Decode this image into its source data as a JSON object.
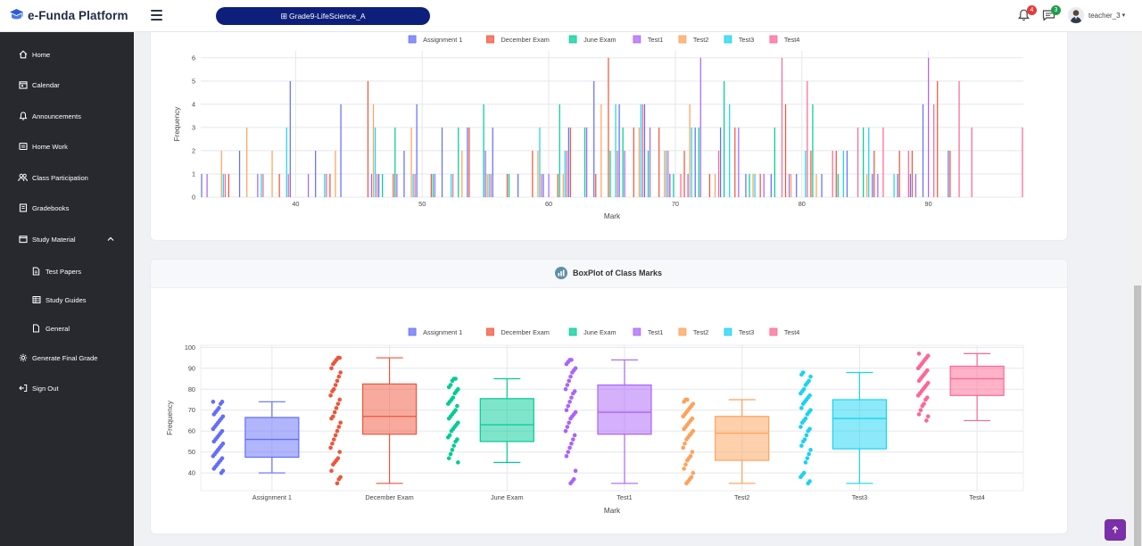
{
  "app": {
    "title": "e-Funda Platform",
    "class_selector": "Grade9-LifeScience_A",
    "notifications_count": "4",
    "messages_count": "3",
    "user_name": "teacher_3"
  },
  "sidebar": {
    "items": [
      {
        "label": "Home",
        "icon": "home-icon"
      },
      {
        "label": "Calendar",
        "icon": "calendar-icon"
      },
      {
        "label": "Announcements",
        "icon": "bell-icon"
      },
      {
        "label": "Home Work",
        "icon": "homework-icon"
      },
      {
        "label": "Class Participation",
        "icon": "users-icon"
      },
      {
        "label": "Gradebooks",
        "icon": "gradebook-icon"
      },
      {
        "label": "Study Material",
        "icon": "book-icon"
      },
      {
        "label": "Test Papers",
        "icon": "document-icon"
      },
      {
        "label": "Study Guides",
        "icon": "guide-icon"
      },
      {
        "label": "General",
        "icon": "file-icon"
      },
      {
        "label": "Generate Final Grade",
        "icon": "cog-icon"
      },
      {
        "label": "Sign Out",
        "icon": "signout-icon"
      }
    ]
  },
  "boxplot_card": {
    "title": "BoxPlot of Class Marks"
  },
  "colors": {
    "Assignment 1": "#636efa",
    "December Exam": "#ef553b",
    "June Exam": "#00cc96",
    "Test1": "#ab63fa",
    "Test2": "#ffa15a",
    "Test3": "#19d3f3",
    "Test4": "#ff6692",
    "nav_bg": "#27292f",
    "pill_bg": "#0d1f7a",
    "accent": "#7b2fa8"
  },
  "chart_data": [
    {
      "type": "bar",
      "title": "",
      "xlabel": "Mark",
      "ylabel": "Frequency",
      "xlim": [
        32.5,
        97.5
      ],
      "ylim": [
        0,
        6.3
      ],
      "x_ticks": [
        40,
        50,
        60,
        70,
        80,
        90
      ],
      "y_ticks": [
        0,
        1,
        2,
        3,
        4,
        5,
        6
      ],
      "legend": "top-center",
      "series": [
        {
          "name": "Assignment 1",
          "points": [
            [
              33,
              1
            ],
            [
              36,
              2
            ],
            [
              40,
              5
            ],
            [
              42,
              2
            ],
            [
              44,
              4
            ],
            [
              47,
              1
            ],
            [
              49,
              2
            ],
            [
              50,
              4
            ],
            [
              52,
              3
            ],
            [
              54,
              3
            ],
            [
              56,
              3
            ],
            [
              58,
              1
            ],
            [
              60,
              1
            ],
            [
              62,
              3
            ],
            [
              64,
              5
            ],
            [
              66,
              4
            ],
            [
              68,
              4
            ],
            [
              70,
              1
            ],
            [
              72,
              3
            ],
            [
              74,
              3
            ],
            [
              76,
              1
            ],
            [
              78,
              1
            ],
            [
              80,
              1
            ],
            [
              82,
              1
            ],
            [
              84,
              2
            ],
            [
              86,
              1
            ],
            [
              88,
              1
            ],
            [
              89,
              1
            ],
            [
              90,
              4
            ],
            [
              92,
              2
            ]
          ]
        },
        {
          "name": "December Exam",
          "points": [
            [
              35,
              1
            ],
            [
              39,
              1
            ],
            [
              43,
              1
            ],
            [
              46,
              5
            ],
            [
              48,
              1
            ],
            [
              51,
              1
            ],
            [
              54,
              3
            ],
            [
              57,
              1
            ],
            [
              59,
              2
            ],
            [
              61,
              1
            ],
            [
              62,
              3
            ],
            [
              64,
              1
            ],
            [
              65,
              6
            ],
            [
              67,
              3
            ],
            [
              69,
              3
            ],
            [
              71,
              2
            ],
            [
              73,
              1
            ],
            [
              75,
              3
            ],
            [
              77,
              1
            ],
            [
              79,
              4
            ],
            [
              81,
              2
            ],
            [
              83,
              2
            ],
            [
              86,
              2
            ],
            [
              88,
              2
            ],
            [
              89,
              2
            ],
            [
              91,
              5
            ],
            [
              92,
              2
            ]
          ]
        },
        {
          "name": "June Exam",
          "points": [
            [
              47,
              1
            ],
            [
              48,
              3
            ],
            [
              51,
              1
            ],
            [
              53,
              3
            ],
            [
              55,
              4
            ],
            [
              57,
              1
            ],
            [
              61,
              4
            ],
            [
              63,
              3
            ],
            [
              65,
              2
            ],
            [
              66,
              3
            ],
            [
              68,
              2
            ],
            [
              70,
              1
            ],
            [
              72,
              3
            ],
            [
              74,
              5
            ],
            [
              76,
              1
            ],
            [
              78,
              3
            ],
            [
              81,
              4
            ],
            [
              83,
              1
            ],
            [
              85,
              3
            ]
          ]
        },
        {
          "name": "Test1",
          "points": [
            [
              33,
              1
            ],
            [
              37,
              1
            ],
            [
              41,
              1
            ],
            [
              46,
              1
            ],
            [
              48,
              1
            ],
            [
              51,
              1
            ],
            [
              55,
              2
            ],
            [
              60,
              1
            ],
            [
              63,
              3
            ],
            [
              66,
              2
            ],
            [
              68,
              3
            ],
            [
              71,
              1
            ],
            [
              72,
              6
            ],
            [
              75,
              3
            ],
            [
              77,
              1
            ],
            [
              79,
              1
            ],
            [
              86,
              1
            ],
            [
              89,
              1
            ],
            [
              90,
              6
            ]
          ]
        },
        {
          "name": "Test2",
          "points": [
            [
              34,
              2
            ],
            [
              36,
              3
            ],
            [
              38,
              2
            ],
            [
              43,
              2
            ],
            [
              46,
              4
            ],
            [
              49,
              3
            ],
            [
              53,
              2
            ],
            [
              55,
              1
            ],
            [
              59,
              2
            ],
            [
              61,
              1
            ],
            [
              64,
              4
            ],
            [
              67,
              3
            ],
            [
              69,
              2
            ],
            [
              71,
              4
            ],
            [
              73,
              1
            ],
            [
              76,
              1
            ],
            [
              79,
              1
            ],
            [
              81,
              1
            ],
            [
              85,
              1
            ]
          ]
        },
        {
          "name": "Test3",
          "points": [
            [
              34,
              1
            ],
            [
              37,
              1
            ],
            [
              39,
              3
            ],
            [
              42,
              1
            ],
            [
              46,
              3
            ],
            [
              49,
              1
            ],
            [
              52,
              1
            ],
            [
              55,
              1
            ],
            [
              59,
              3
            ],
            [
              61,
              2
            ],
            [
              65,
              4
            ],
            [
              67,
              4
            ],
            [
              69,
              2
            ],
            [
              71,
              3
            ],
            [
              74,
              4
            ],
            [
              76,
              1
            ],
            [
              80,
              2
            ],
            [
              83,
              2
            ],
            [
              85,
              3
            ],
            [
              87,
              1
            ]
          ]
        },
        {
          "name": "Test4",
          "points": [
            [
              34,
              1
            ],
            [
              37,
              1
            ],
            [
              39,
              1
            ],
            [
              42,
              1
            ],
            [
              46,
              1
            ],
            [
              49,
              1
            ],
            [
              52,
              1
            ],
            [
              55,
              1
            ],
            [
              59,
              1
            ],
            [
              61,
              2
            ],
            [
              65,
              2
            ],
            [
              67,
              4
            ],
            [
              69,
              2
            ],
            [
              70,
              1
            ],
            [
              73,
              2
            ],
            [
              78,
              6
            ],
            [
              80,
              5
            ],
            [
              82,
              2
            ],
            [
              84,
              3
            ],
            [
              86,
              3
            ],
            [
              88,
              2
            ],
            [
              90,
              4
            ],
            [
              92,
              5
            ],
            [
              93,
              3
            ],
            [
              97,
              3
            ]
          ]
        }
      ]
    },
    {
      "type": "box",
      "title": "BoxPlot of Class Marks",
      "xlabel": "Mark",
      "ylabel": "Frequency",
      "ylim": [
        31.5,
        101
      ],
      "y_ticks": [
        40,
        50,
        60,
        70,
        80,
        90,
        100
      ],
      "legend": "top-center",
      "categories": [
        "Assignment 1",
        "December Exam",
        "June Exam",
        "Test1",
        "Test2",
        "Test3",
        "Test4"
      ],
      "series": [
        {
          "name": "Assignment 1",
          "min": 40,
          "q1": 47.5,
          "median": 56,
          "q3": 66.5,
          "max": 74,
          "points": [
            74,
            74,
            73,
            71,
            70,
            69,
            68,
            67,
            66,
            65,
            64,
            63,
            62,
            61,
            60,
            59,
            58,
            57,
            56,
            55,
            54,
            53,
            52,
            51,
            50,
            49,
            48,
            47,
            46,
            45,
            44,
            43,
            42,
            41,
            40
          ]
        },
        {
          "name": "December Exam",
          "min": 35,
          "q1": 58.5,
          "median": 67,
          "q3": 82.5,
          "max": 95,
          "points": [
            95,
            95,
            94,
            93,
            92,
            90,
            88,
            86,
            84,
            82,
            80,
            79,
            77,
            75,
            73,
            71,
            69,
            67,
            66,
            64,
            62,
            60,
            58,
            56,
            54,
            52,
            50,
            47,
            46,
            45,
            44,
            41,
            38,
            37,
            35
          ]
        },
        {
          "name": "June Exam",
          "min": 45,
          "q1": 55,
          "median": 63,
          "q3": 75.5,
          "max": 85,
          "points": [
            85,
            85,
            84,
            82,
            81,
            80,
            79,
            78,
            76,
            75,
            74,
            73,
            72,
            70,
            69,
            68,
            67,
            66,
            64,
            63,
            62,
            61,
            60,
            58,
            57,
            56,
            55,
            53,
            51,
            49,
            47,
            45
          ]
        },
        {
          "name": "Test1",
          "min": 35,
          "q1": 58.5,
          "median": 69,
          "q3": 82,
          "max": 94,
          "points": [
            94,
            94,
            93,
            92,
            90,
            89,
            88,
            86,
            84,
            82,
            80,
            79,
            78,
            76,
            74,
            72,
            70,
            69,
            68,
            67,
            66,
            64,
            62,
            60,
            58,
            56,
            54,
            52,
            50,
            48,
            41,
            37,
            36,
            35
          ]
        },
        {
          "name": "Test2",
          "min": 35,
          "q1": 46,
          "median": 59,
          "q3": 67,
          "max": 75,
          "points": [
            75,
            75,
            74,
            73,
            72,
            71,
            70,
            69,
            68,
            67,
            66,
            65,
            64,
            63,
            62,
            61,
            60,
            59,
            58,
            57,
            56,
            54,
            52,
            50,
            48,
            47,
            46,
            44,
            42,
            40,
            38,
            37,
            36,
            35
          ]
        },
        {
          "name": "Test3",
          "min": 35,
          "q1": 51.5,
          "median": 66,
          "q3": 75,
          "max": 88,
          "points": [
            88,
            87,
            86,
            84,
            83,
            82,
            80,
            79,
            78,
            77,
            76,
            75,
            74,
            73,
            71,
            70,
            69,
            68,
            66,
            65,
            64,
            62,
            61,
            60,
            58,
            56,
            55,
            53,
            51,
            49,
            47,
            45,
            40,
            39,
            38,
            36,
            35
          ]
        },
        {
          "name": "Test4",
          "min": 65,
          "q1": 77,
          "median": 85,
          "q3": 91,
          "max": 97,
          "points": [
            97,
            96,
            95,
            94,
            93,
            92,
            91,
            90,
            89,
            88,
            87,
            86,
            85,
            84,
            83,
            82,
            81,
            80,
            79,
            78,
            77,
            76,
            75,
            73,
            72,
            70,
            68,
            67,
            65
          ]
        }
      ]
    }
  ]
}
